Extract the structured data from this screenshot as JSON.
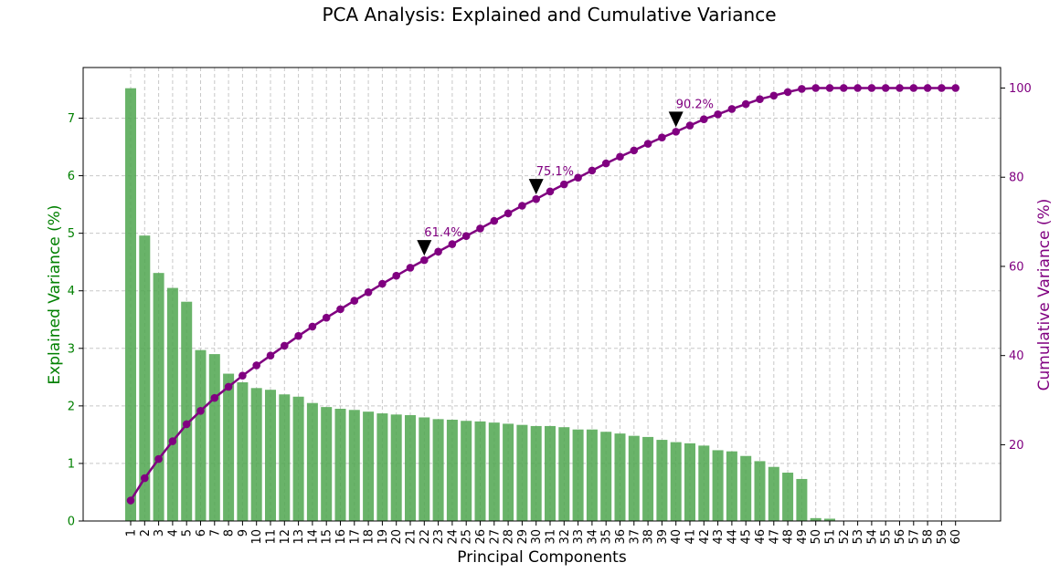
{
  "chart_data": {
    "type": "bar+line",
    "title": "PCA Analysis: Explained and Cumulative Variance",
    "xlabel": "Principal Components",
    "ylabel_left": "Explained Variance (%)",
    "ylabel_right": "Cumulative Variance (%)",
    "ylim_left": [
      0,
      7.88
    ],
    "ylim_right": [
      2.9,
      104.6
    ],
    "yticks_left": [
      0,
      1,
      2,
      3,
      4,
      5,
      6,
      7
    ],
    "yticks_right": [
      20,
      40,
      60,
      80,
      100
    ],
    "categories": [
      "1",
      "2",
      "3",
      "4",
      "5",
      "6",
      "7",
      "8",
      "9",
      "10",
      "11",
      "12",
      "13",
      "14",
      "15",
      "16",
      "17",
      "18",
      "19",
      "20",
      "21",
      "22",
      "23",
      "24",
      "25",
      "26",
      "27",
      "28",
      "29",
      "30",
      "31",
      "32",
      "33",
      "34",
      "35",
      "36",
      "37",
      "38",
      "39",
      "40",
      "41",
      "42",
      "43",
      "44",
      "45",
      "46",
      "47",
      "48",
      "49",
      "50",
      "51",
      "52",
      "53",
      "54",
      "55",
      "56",
      "57",
      "58",
      "59",
      "60"
    ],
    "grid": true,
    "colors": {
      "bars": "#4fa64f",
      "line": "#800080",
      "left_axis": "#008000",
      "right_axis": "#800080"
    },
    "series": [
      {
        "kind": "bar",
        "axis": "left",
        "values": [
          7.52,
          4.96,
          4.31,
          4.05,
          3.81,
          2.97,
          2.9,
          2.56,
          2.41,
          2.31,
          2.28,
          2.2,
          2.16,
          2.05,
          1.98,
          1.95,
          1.93,
          1.9,
          1.87,
          1.85,
          1.84,
          1.8,
          1.77,
          1.76,
          1.74,
          1.73,
          1.71,
          1.69,
          1.67,
          1.65,
          1.65,
          1.63,
          1.59,
          1.59,
          1.55,
          1.52,
          1.48,
          1.46,
          1.41,
          1.37,
          1.35,
          1.31,
          1.23,
          1.21,
          1.13,
          1.04,
          0.94,
          0.84,
          0.73,
          0.05,
          0.04,
          0,
          0,
          0,
          0,
          0,
          0,
          0,
          0,
          0
        ]
      },
      {
        "kind": "line",
        "axis": "right",
        "values": [
          7.5,
          12.5,
          16.8,
          20.8,
          24.6,
          27.6,
          30.5,
          33.0,
          35.5,
          37.8,
          40.0,
          42.2,
          44.4,
          46.5,
          48.5,
          50.4,
          52.3,
          54.2,
          56.1,
          57.9,
          59.7,
          61.4,
          63.3,
          65.0,
          66.8,
          68.5,
          70.2,
          71.9,
          73.6,
          75.1,
          76.8,
          78.4,
          79.9,
          81.5,
          83.1,
          84.6,
          86.0,
          87.5,
          88.9,
          90.2,
          91.6,
          93.0,
          94.1,
          95.3,
          96.4,
          97.5,
          98.3,
          99.1,
          99.8,
          100.0,
          100.0,
          100.0,
          100.0,
          100.0,
          100.0,
          100.0,
          100.0,
          100.0,
          100.0,
          100.0
        ]
      }
    ],
    "annotations": [
      {
        "x": "22",
        "y": 61.4,
        "text": "61.4%"
      },
      {
        "x": "30",
        "y": 75.1,
        "text": "75.1%"
      },
      {
        "x": "40",
        "y": 90.2,
        "text": "90.2%"
      }
    ]
  }
}
